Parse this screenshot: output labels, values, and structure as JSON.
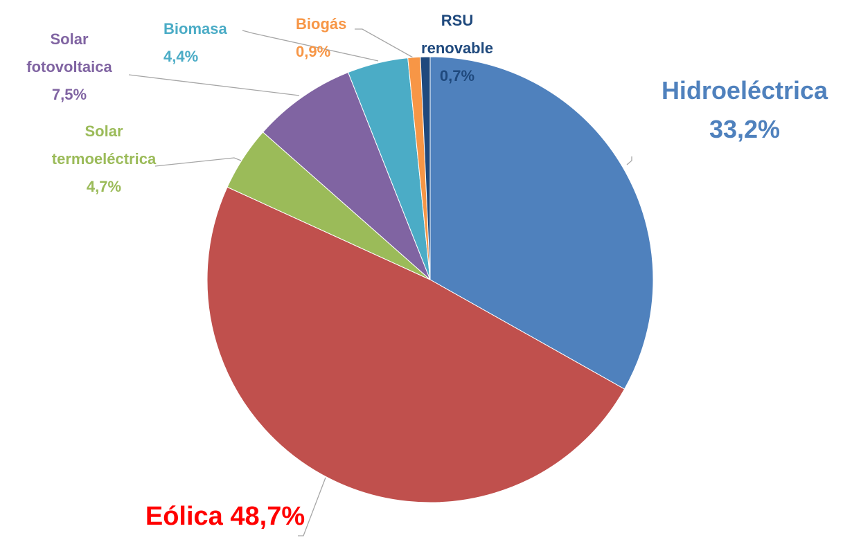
{
  "chart_data": {
    "type": "pie",
    "categories": [
      "Hidroeléctrica",
      "Eólica",
      "Solar termoeléctrica",
      "Solar fotovoltaica",
      "Biomasa",
      "Biogás",
      "RSU renovable"
    ],
    "values": [
      33.2,
      48.7,
      4.7,
      7.5,
      4.4,
      0.9,
      0.7
    ],
    "value_labels": [
      "33,2%",
      "48,7%",
      "4,7%",
      "7,5%",
      "4,4%",
      "0,9%",
      "0,7%"
    ],
    "colors": [
      "#4f81bd",
      "#c0504d",
      "#9bbb59",
      "#8064a2",
      "#4bacc6",
      "#f79646",
      "#1f497d"
    ],
    "label_colors": [
      "#4f81bd",
      "#ff0000",
      "#9bbb59",
      "#8064a2",
      "#4bacc6",
      "#f79646",
      "#1f497d"
    ]
  }
}
